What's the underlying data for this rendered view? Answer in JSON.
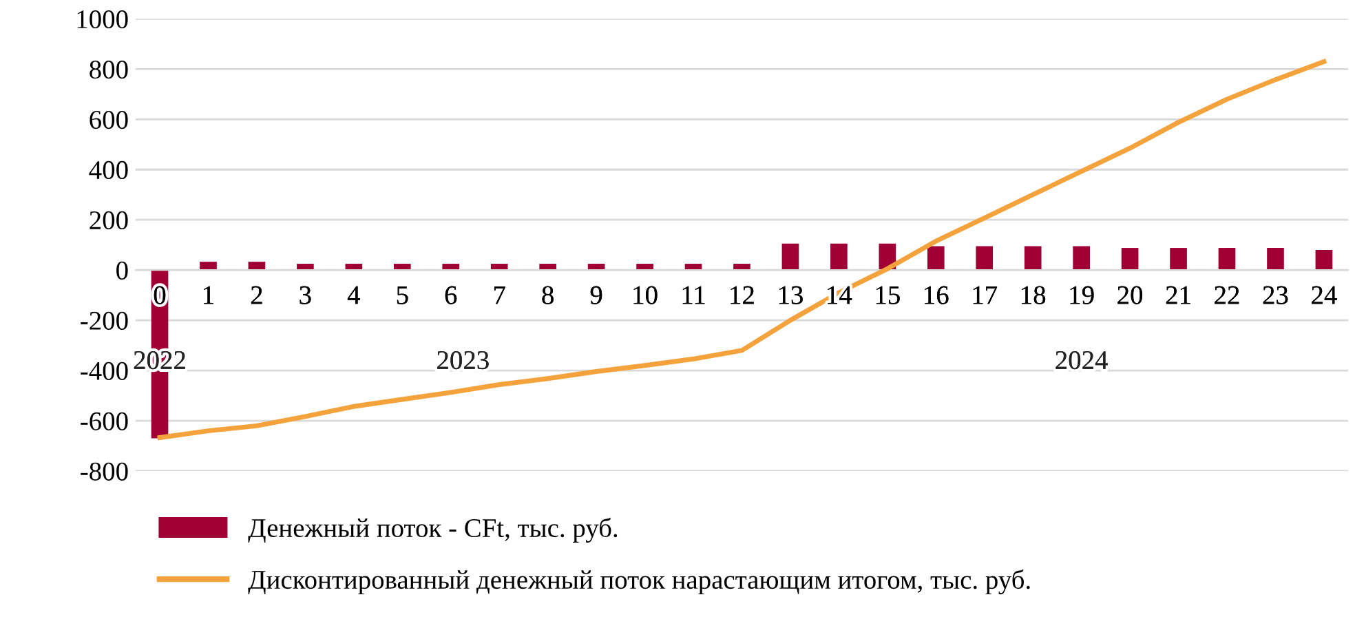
{
  "chart_data": {
    "type": "bar",
    "categories": [
      "0",
      "1",
      "2",
      "3",
      "4",
      "5",
      "6",
      "7",
      "8",
      "9",
      "10",
      "11",
      "12",
      "13",
      "14",
      "15",
      "16",
      "17",
      "18",
      "19",
      "20",
      "21",
      "22",
      "23",
      "24"
    ],
    "series": [
      {
        "name": "Денежный поток - CFt, тыс. руб.",
        "color": "#a00034",
        "values": [
          -670,
          33,
          33,
          25,
          25,
          25,
          25,
          25,
          25,
          25,
          25,
          25,
          25,
          105,
          105,
          105,
          95,
          95,
          95,
          95,
          88,
          88,
          88,
          88,
          80
        ]
      },
      {
        "name": "Дисконтированный денежный поток нарастающим итогом, тыс. руб.",
        "type": "line",
        "color": "#f4a23c",
        "values": [
          -667,
          -640,
          -620,
          -583,
          -543,
          -515,
          -487,
          -456,
          -432,
          -404,
          -380,
          -354,
          -320,
          -200,
          -90,
          5,
          115,
          207,
          300,
          393,
          485,
          588,
          680,
          758,
          830
        ]
      }
    ],
    "ylim": [
      -800,
      1000
    ],
    "yticks": [
      -800,
      -600,
      -400,
      -200,
      0,
      200,
      400,
      600,
      800,
      1000
    ],
    "grid": "y",
    "legend": "bottom",
    "marker": "none",
    "line_style": "solid",
    "annotations": [
      "2022",
      "2023",
      "2024"
    ]
  }
}
